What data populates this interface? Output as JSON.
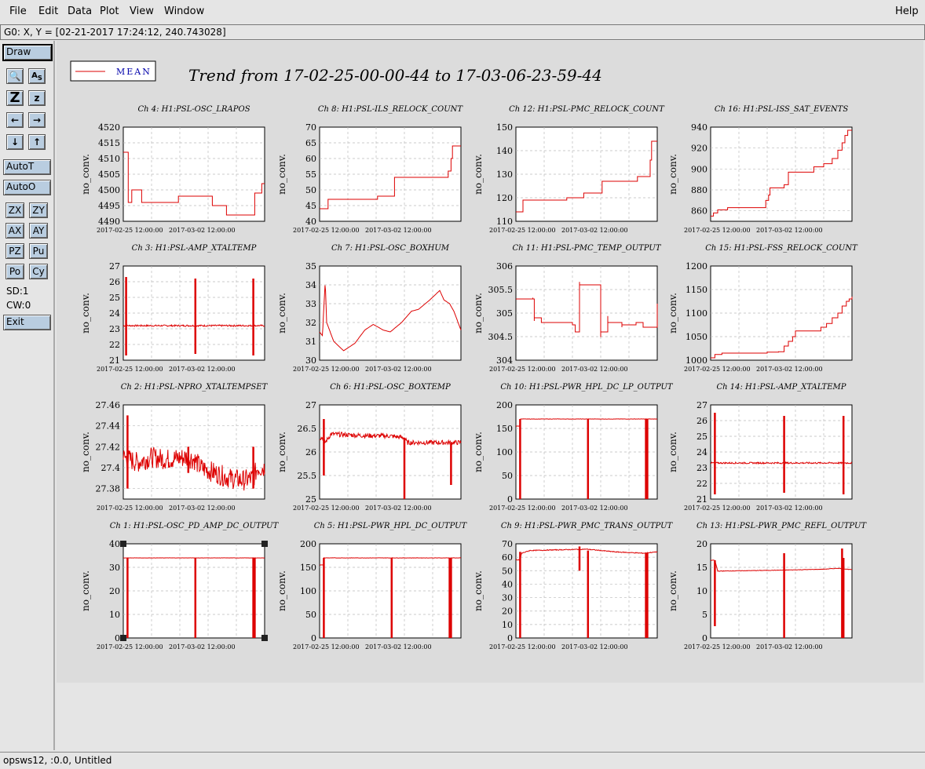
{
  "menubar": {
    "items": [
      {
        "label": "File",
        "x": 12
      },
      {
        "label": "Edit",
        "x": 49
      },
      {
        "label": "Data",
        "x": 86
      },
      {
        "label": "Plot",
        "x": 127
      },
      {
        "label": "View",
        "x": 165
      },
      {
        "label": "Window",
        "x": 209
      }
    ],
    "help": "Help"
  },
  "status": {
    "cursor": "G0: X, Y = [02-21-2017 17:24:12, 240.743028]"
  },
  "toolbar": {
    "draw": "Draw",
    "autot": "AutoT",
    "autoo": "AutoO",
    "zx": "ZX",
    "zy": "ZY",
    "ax": "AX",
    "ay": "AY",
    "pz": "PZ",
    "pu": "Pu",
    "po": "Po",
    "cy": "Cy",
    "sd": "SD:1",
    "cw": "CW:0",
    "exit": "Exit"
  },
  "legend": {
    "label": "MEAN",
    "color": "#dd0000"
  },
  "trend_title": "Trend from 17-02-25-00-00-44 to 17-03-06-23-59-44",
  "footer": {
    "text": "opsws12, :0.0, Untitled"
  },
  "chart_data": [
    {
      "type": "line",
      "channel": "Ch 4: H1:PSL-OSC_LRAPOS",
      "ylabel": "no_conv.",
      "ylim": [
        4490,
        4520
      ],
      "yticks": [
        4490,
        4495,
        4500,
        4505,
        4510,
        4515,
        4520
      ],
      "xticks": [
        "2017-02-25 12:00:00",
        "2017-03-02 12:00:00"
      ],
      "shape": "step",
      "pts": [
        [
          0,
          4512
        ],
        [
          0.03,
          4512
        ],
        [
          0.035,
          4496
        ],
        [
          0.05,
          4496
        ],
        [
          0.06,
          4500
        ],
        [
          0.12,
          4500
        ],
        [
          0.13,
          4496
        ],
        [
          0.38,
          4496
        ],
        [
          0.39,
          4498
        ],
        [
          0.62,
          4498
        ],
        [
          0.63,
          4495
        ],
        [
          0.72,
          4495
        ],
        [
          0.73,
          4492
        ],
        [
          0.92,
          4492
        ],
        [
          0.93,
          4499
        ],
        [
          0.97,
          4499
        ],
        [
          0.98,
          4502
        ],
        [
          1,
          4502
        ]
      ]
    },
    {
      "type": "line",
      "channel": "Ch 8: H1:PSL-ILS_RELOCK_COUNT",
      "ylabel": "no_conv.",
      "ylim": [
        40,
        70
      ],
      "yticks": [
        40,
        45,
        50,
        55,
        60,
        65,
        70
      ],
      "xticks": [
        "2017-02-25 12:00:00",
        "2017-03-02 12:00:00"
      ],
      "shape": "step",
      "pts": [
        [
          0,
          44
        ],
        [
          0.05,
          44
        ],
        [
          0.06,
          47
        ],
        [
          0.4,
          47
        ],
        [
          0.41,
          48
        ],
        [
          0.52,
          48
        ],
        [
          0.53,
          54
        ],
        [
          0.9,
          54
        ],
        [
          0.91,
          56
        ],
        [
          0.93,
          60
        ],
        [
          0.94,
          64
        ],
        [
          1,
          64
        ]
      ]
    },
    {
      "type": "line",
      "channel": "Ch 12: H1:PSL-PMC_RELOCK_COUNT",
      "ylabel": "no_conv.",
      "ylim": [
        110,
        150
      ],
      "yticks": [
        110,
        120,
        130,
        140,
        150
      ],
      "xticks": [
        "2017-02-25 12:00:00",
        "2017-03-02 12:00:00"
      ],
      "shape": "step",
      "pts": [
        [
          0,
          114
        ],
        [
          0.04,
          114
        ],
        [
          0.05,
          119
        ],
        [
          0.35,
          119
        ],
        [
          0.36,
          120
        ],
        [
          0.47,
          120
        ],
        [
          0.48,
          122
        ],
        [
          0.6,
          122
        ],
        [
          0.61,
          127
        ],
        [
          0.85,
          127
        ],
        [
          0.86,
          129
        ],
        [
          0.94,
          129
        ],
        [
          0.95,
          136
        ],
        [
          0.96,
          144
        ],
        [
          1,
          144
        ]
      ]
    },
    {
      "type": "line",
      "channel": "Ch 16: H1:PSL-ISS_SAT_EVENTS",
      "ylabel": "no_conv.",
      "ylim": [
        850,
        940
      ],
      "yticks": [
        860,
        880,
        900,
        920,
        940
      ],
      "xticks": [
        "2017-02-25 12:00:00",
        "2017-03-02 12:00:00"
      ],
      "shape": "step",
      "pts": [
        [
          0,
          855
        ],
        [
          0.02,
          858
        ],
        [
          0.05,
          861
        ],
        [
          0.1,
          861
        ],
        [
          0.12,
          863
        ],
        [
          0.38,
          863
        ],
        [
          0.39,
          870
        ],
        [
          0.41,
          875
        ],
        [
          0.42,
          882
        ],
        [
          0.52,
          885
        ],
        [
          0.55,
          897
        ],
        [
          0.72,
          897
        ],
        [
          0.73,
          902
        ],
        [
          0.8,
          905
        ],
        [
          0.86,
          910
        ],
        [
          0.9,
          918
        ],
        [
          0.93,
          925
        ],
        [
          0.95,
          932
        ],
        [
          0.97,
          937
        ],
        [
          1,
          937
        ]
      ]
    },
    {
      "type": "line",
      "channel": "Ch 3: H1:PSL-AMP_XTALTEMP",
      "ylabel": "no_conv.",
      "ylim": [
        21,
        27
      ],
      "yticks": [
        21,
        22,
        23,
        24,
        25,
        26,
        27
      ],
      "xticks": [
        "2017-02-25 12:00:00",
        "2017-03-02 12:00:00"
      ],
      "shape": "flat",
      "base": 23.2,
      "noise": 0.05,
      "spikes": [
        [
          0.02,
          26.3,
          21.3
        ],
        [
          0.51,
          26.2,
          21.4
        ],
        [
          0.92,
          26.2,
          21.3
        ]
      ]
    },
    {
      "type": "line",
      "channel": "Ch 7: H1:PSL-OSC_BOXHUM",
      "ylabel": "no_conv.",
      "ylim": [
        30,
        35
      ],
      "yticks": [
        30,
        31,
        32,
        33,
        34,
        35
      ],
      "xticks": [
        "2017-02-25 12:00:00",
        "2017-03-02 12:00:00"
      ],
      "shape": "smooth",
      "pts": [
        [
          0,
          31.5
        ],
        [
          0.02,
          31.3
        ],
        [
          0.04,
          34.2
        ],
        [
          0.05,
          32
        ],
        [
          0.1,
          31
        ],
        [
          0.17,
          30.5
        ],
        [
          0.25,
          30.9
        ],
        [
          0.32,
          31.6
        ],
        [
          0.38,
          31.9
        ],
        [
          0.45,
          31.6
        ],
        [
          0.5,
          31.5
        ],
        [
          0.58,
          32
        ],
        [
          0.65,
          32.6
        ],
        [
          0.7,
          32.7
        ],
        [
          0.78,
          33.2
        ],
        [
          0.85,
          33.7
        ],
        [
          0.88,
          33.2
        ],
        [
          0.92,
          33
        ],
        [
          0.95,
          32.6
        ],
        [
          1,
          31.6
        ]
      ]
    },
    {
      "type": "line",
      "channel": "Ch 11: H1:PSL-PMC_TEMP_OUTPUT",
      "ylabel": "no_conv.",
      "ylim": [
        304,
        306
      ],
      "yticks": [
        304,
        304.5,
        305,
        305.5,
        306
      ],
      "xticks": [
        "2017-02-25 12:00:00",
        "2017-03-02 12:00:00"
      ],
      "shape": "step",
      "pts": [
        [
          0,
          305.3
        ],
        [
          0.12,
          305.3
        ],
        [
          0.13,
          304.9
        ],
        [
          0.18,
          304.8
        ],
        [
          0.3,
          304.8
        ],
        [
          0.4,
          304.75
        ],
        [
          0.42,
          304.6
        ],
        [
          0.45,
          305.6
        ],
        [
          0.58,
          305.6
        ],
        [
          0.6,
          304.6
        ],
        [
          0.65,
          304.8
        ],
        [
          0.75,
          304.75
        ],
        [
          0.85,
          304.8
        ],
        [
          0.9,
          304.7
        ],
        [
          1,
          305.2
        ]
      ],
      "noise": 0.05
    },
    {
      "type": "line",
      "channel": "Ch 15: H1:PSL-FSS_RELOCK_COUNT",
      "ylabel": "no_conv.",
      "ylim": [
        1000,
        1200
      ],
      "yticks": [
        1000,
        1050,
        1100,
        1150,
        1200
      ],
      "xticks": [
        "2017-02-25 12:00:00",
        "2017-03-02 12:00:00"
      ],
      "shape": "step",
      "pts": [
        [
          0,
          1005
        ],
        [
          0.03,
          1012
        ],
        [
          0.08,
          1015
        ],
        [
          0.3,
          1015
        ],
        [
          0.4,
          1017
        ],
        [
          0.48,
          1018
        ],
        [
          0.52,
          1030
        ],
        [
          0.55,
          1040
        ],
        [
          0.58,
          1050
        ],
        [
          0.6,
          1062
        ],
        [
          0.75,
          1062
        ],
        [
          0.78,
          1070
        ],
        [
          0.82,
          1078
        ],
        [
          0.86,
          1090
        ],
        [
          0.9,
          1100
        ],
        [
          0.93,
          1115
        ],
        [
          0.96,
          1125
        ],
        [
          0.98,
          1130
        ],
        [
          1,
          1135
        ]
      ]
    },
    {
      "type": "line",
      "channel": "Ch 2: H1:PSL-NPRO_XTALTEMPSET",
      "ylabel": "no_conv.",
      "ylim": [
        27.37,
        27.46
      ],
      "yticks": [
        27.38,
        27.4,
        27.42,
        27.44,
        27.46
      ],
      "xticks": [
        "2017-02-25 12:00:00",
        "2017-03-02 12:00:00"
      ],
      "shape": "noisy",
      "pts": [
        [
          0,
          27.41
        ],
        [
          0.1,
          27.405
        ],
        [
          0.2,
          27.41
        ],
        [
          0.3,
          27.408
        ],
        [
          0.45,
          27.41
        ],
        [
          0.5,
          27.408
        ],
        [
          0.55,
          27.4
        ],
        [
          0.65,
          27.395
        ],
        [
          0.75,
          27.39
        ],
        [
          0.85,
          27.388
        ],
        [
          0.92,
          27.39
        ],
        [
          0.95,
          27.4
        ],
        [
          1,
          27.4
        ]
      ],
      "noise": 0.005,
      "spikes": [
        [
          0.03,
          27.45,
          27.38
        ],
        [
          0.46,
          27.42,
          27.395
        ],
        [
          0.92,
          27.42,
          27.38
        ]
      ]
    },
    {
      "type": "line",
      "channel": "Ch 6: H1:PSL-OSC_BOXTEMP",
      "ylabel": "no_conv.",
      "ylim": [
        25,
        27
      ],
      "yticks": [
        25,
        25.5,
        26,
        26.5,
        27
      ],
      "xticks": [
        "2017-02-25 12:00:00",
        "2017-03-02 12:00:00"
      ],
      "shape": "noisy",
      "pts": [
        [
          0,
          26.3
        ],
        [
          0.02,
          26.3
        ],
        [
          0.04,
          26.2
        ],
        [
          0.08,
          26.38
        ],
        [
          0.3,
          26.35
        ],
        [
          0.5,
          26.34
        ],
        [
          0.6,
          26.3
        ],
        [
          0.62,
          26.2
        ],
        [
          0.75,
          26.2
        ],
        [
          1,
          26.2
        ]
      ],
      "noise": 0.025,
      "spikes": [
        [
          0.03,
          26.7,
          25.5
        ],
        [
          0.6,
          26.3,
          25.0
        ],
        [
          0.93,
          26.2,
          25.3
        ]
      ]
    },
    {
      "type": "line",
      "channel": "Ch 10: H1:PSL-PWR_HPL_DC_LP_OUTPUT",
      "ylabel": "no_conv.",
      "ylim": [
        0,
        200
      ],
      "yticks": [
        0,
        50,
        100,
        150,
        200
      ],
      "xticks": [
        "2017-02-25 12:00:00",
        "2017-03-02 12:00:00"
      ],
      "shape": "flat",
      "base": 170,
      "noise": 0.3,
      "spikes": [
        [
          0.03,
          170,
          0
        ],
        [
          0.51,
          170,
          0
        ],
        [
          0.92,
          170,
          0
        ],
        [
          0.93,
          170,
          0
        ]
      ],
      "pre": [
        [
          0,
          155
        ],
        [
          0.03,
          155
        ]
      ]
    },
    {
      "type": "line",
      "channel": "Ch 14: H1:PSL-AMP_XTALTEMP",
      "ylabel": "no_conv.",
      "ylim": [
        21,
        27
      ],
      "yticks": [
        21,
        22,
        23,
        24,
        25,
        26,
        27
      ],
      "xticks": [
        "2017-02-25 12:00:00",
        "2017-03-02 12:00:00"
      ],
      "shape": "flat",
      "base": 23.3,
      "noise": 0.05,
      "spikes": [
        [
          0.03,
          26.5,
          21.3
        ],
        [
          0.52,
          26.3,
          21.4
        ],
        [
          0.94,
          26.3,
          21.3
        ]
      ]
    },
    {
      "type": "line",
      "channel": "Ch 1: H1:PSL-OSC_PD_AMP_DC_OUTPUT",
      "ylabel": "no_conv.",
      "ylim": [
        0,
        40
      ],
      "yticks": [
        0,
        10,
        20,
        30,
        40
      ],
      "xticks": [
        "2017-02-25 12:00:00",
        "2017-03-02 12:00:00"
      ],
      "shape": "flat",
      "base": 34,
      "noise": 0.05,
      "spikes": [
        [
          0.03,
          34,
          0
        ],
        [
          0.51,
          34,
          0
        ],
        [
          0.92,
          34,
          0
        ],
        [
          0.93,
          34,
          0
        ]
      ]
    },
    {
      "type": "line",
      "channel": "Ch 5: H1:PSL-PWR_HPL_DC_OUTPUT",
      "ylabel": "no_conv.",
      "ylim": [
        0,
        200
      ],
      "yticks": [
        0,
        50,
        100,
        150,
        200
      ],
      "xticks": [
        "2017-02-25 12:00:00",
        "2017-03-02 12:00:00"
      ],
      "shape": "flat",
      "base": 170,
      "noise": 0.3,
      "spikes": [
        [
          0.03,
          170,
          0
        ],
        [
          0.51,
          170,
          0
        ],
        [
          0.92,
          170,
          0
        ],
        [
          0.93,
          170,
          0
        ]
      ],
      "pre": [
        [
          0,
          155
        ],
        [
          0.03,
          155
        ]
      ]
    },
    {
      "type": "line",
      "channel": "Ch 9: H1:PSL-PWR_PMC_TRANS_OUTPUT",
      "ylabel": "no_conv.",
      "ylim": [
        0,
        70
      ],
      "yticks": [
        0,
        10,
        20,
        30,
        40,
        50,
        60,
        70
      ],
      "xticks": [
        "2017-02-25 12:00:00",
        "2017-03-02 12:00:00"
      ],
      "shape": "flat",
      "base": 65,
      "noise": 0.3,
      "pts": [
        [
          0,
          58
        ],
        [
          0.03,
          58
        ],
        [
          0.04,
          63
        ],
        [
          0.1,
          65
        ],
        [
          0.5,
          66
        ],
        [
          0.7,
          64
        ],
        [
          0.9,
          63
        ],
        [
          1,
          64
        ]
      ],
      "spikes": [
        [
          0.03,
          64,
          0
        ],
        [
          0.51,
          65,
          0
        ],
        [
          0.45,
          68,
          50
        ],
        [
          0.92,
          63,
          0
        ],
        [
          0.93,
          63,
          0
        ]
      ]
    },
    {
      "type": "line",
      "channel": "Ch 13: H1:PSL-PWR_PMC_REFL_OUTPUT",
      "ylabel": "no_conv.",
      "ylim": [
        0,
        20
      ],
      "yticks": [
        0,
        5,
        10,
        15,
        20
      ],
      "xticks": [
        "2017-02-25 12:00:00",
        "2017-03-02 12:00:00"
      ],
      "shape": "flat",
      "base": 14.2,
      "noise": 0.05,
      "pts": [
        [
          0,
          16.5
        ],
        [
          0.03,
          16.5
        ],
        [
          0.05,
          14.2
        ],
        [
          0.5,
          14.4
        ],
        [
          0.8,
          14.6
        ],
        [
          0.9,
          14.8
        ],
        [
          1,
          14.5
        ]
      ],
      "spikes": [
        [
          0.03,
          16.5,
          2.5
        ],
        [
          0.52,
          18,
          0
        ],
        [
          0.93,
          19,
          0
        ],
        [
          0.94,
          17,
          0
        ]
      ]
    }
  ]
}
